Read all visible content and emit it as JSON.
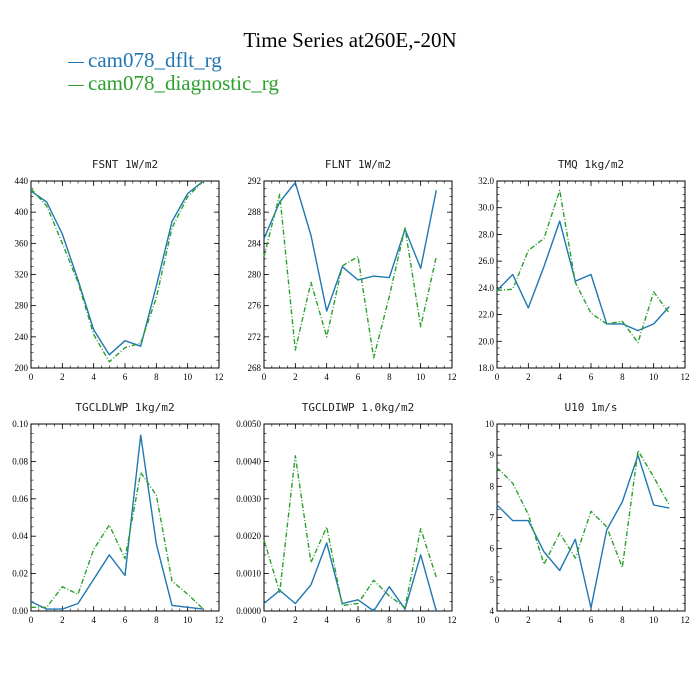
{
  "title": "Time Series at260E,-20N",
  "legend": [
    {
      "name": "cam078_dflt_rg",
      "color": "#1f77b4"
    },
    {
      "name": "cam078_diagnostic_rg",
      "color": "#2ca02c"
    }
  ],
  "chart_data": [
    {
      "type": "line",
      "title": "FSNT  1W/m2",
      "x": [
        0,
        1,
        2,
        3,
        4,
        5,
        6,
        7,
        8,
        9,
        10,
        11
      ],
      "xlim": [
        0,
        12
      ],
      "xticks": [
        "0",
        "2",
        "4",
        "6",
        "8",
        "10",
        "12"
      ],
      "ylim": [
        200,
        440
      ],
      "yticks": [
        "200",
        "240",
        "280",
        "320",
        "360",
        "400",
        "440"
      ],
      "series": [
        {
          "name": "cam078_dflt_rg",
          "values": [
            427,
            413,
            372,
            313,
            249,
            217,
            235,
            228,
            305,
            388,
            424,
            440
          ]
        },
        {
          "name": "cam078_diagnostic_rg",
          "values": [
            430,
            408,
            360,
            310,
            243,
            208,
            226,
            232,
            290,
            380,
            420,
            440
          ]
        }
      ]
    },
    {
      "type": "line",
      "title": "FLNT  1W/m2",
      "x": [
        0,
        1,
        2,
        3,
        4,
        5,
        6,
        7,
        8,
        9,
        10,
        11
      ],
      "xlim": [
        0,
        12
      ],
      "xticks": [
        "0",
        "2",
        "4",
        "6",
        "8",
        "10",
        "12"
      ],
      "ylim": [
        268,
        292
      ],
      "yticks": [
        "268",
        "272",
        "276",
        "280",
        "284",
        "288",
        "292"
      ],
      "series": [
        {
          "name": "cam078_dflt_rg",
          "values": [
            284.6,
            289.3,
            291.8,
            285,
            275.3,
            281,
            279.3,
            279.8,
            279.6,
            285.8,
            280.8,
            290.8
          ]
        },
        {
          "name": "cam078_diagnostic_rg",
          "values": [
            282.3,
            290.3,
            270.3,
            279,
            272,
            281.1,
            282.3,
            269.3,
            277.2,
            286,
            273.3,
            282.3
          ]
        }
      ]
    },
    {
      "type": "line",
      "title": "TMQ  1kg/m2",
      "x": [
        0,
        1,
        2,
        3,
        4,
        5,
        6,
        7,
        8,
        9,
        10,
        11
      ],
      "xlim": [
        0,
        12
      ],
      "xticks": [
        "0",
        "2",
        "4",
        "6",
        "8",
        "10",
        "12"
      ],
      "ylim": [
        18,
        32
      ],
      "yticks": [
        "18.0",
        "20.0",
        "22.0",
        "24.0",
        "26.0",
        "28.0",
        "30.0",
        "32.0"
      ],
      "series": [
        {
          "name": "cam078_dflt_rg",
          "values": [
            23.8,
            25,
            22.5,
            25.6,
            29,
            24.5,
            25,
            21.3,
            21.3,
            20.8,
            21.3,
            22.6
          ]
        },
        {
          "name": "cam078_diagnostic_rg",
          "values": [
            23.8,
            23.9,
            26.8,
            27.7,
            31.3,
            24.4,
            22.1,
            21.3,
            21.5,
            19.9,
            23.7,
            22.1
          ]
        }
      ]
    },
    {
      "type": "line",
      "title": "TGCLDLWP  1kg/m2",
      "x": [
        0,
        1,
        2,
        3,
        4,
        5,
        6,
        7,
        8,
        9,
        10,
        11
      ],
      "xlim": [
        0,
        12
      ],
      "xticks": [
        "0",
        "2",
        "4",
        "6",
        "8",
        "10",
        "12"
      ],
      "ylim": [
        0,
        0.1
      ],
      "yticks": [
        "0.00",
        "0.02",
        "0.04",
        "0.06",
        "0.08",
        "0.10"
      ],
      "series": [
        {
          "name": "cam078_dflt_rg",
          "values": [
            0.005,
            0.001,
            0.001,
            0.004,
            0.017,
            0.03,
            0.019,
            0.094,
            0.036,
            0.003,
            0.002,
            0.001
          ]
        },
        {
          "name": "cam078_diagnostic_rg",
          "values": [
            0.002,
            0.002,
            0.013,
            0.009,
            0.033,
            0.046,
            0.028,
            0.074,
            0.062,
            0.016,
            0.009,
            0.001
          ]
        }
      ]
    },
    {
      "type": "line",
      "title": "TGCLDIWP  1.0kg/m2",
      "x": [
        0,
        1,
        2,
        3,
        4,
        5,
        6,
        7,
        8,
        9,
        10,
        11
      ],
      "xlim": [
        0,
        12
      ],
      "xticks": [
        "0",
        "2",
        "4",
        "6",
        "8",
        "10",
        "12"
      ],
      "ylim": [
        0,
        0.005
      ],
      "yticks": [
        "0.0000",
        "0.0010",
        "0.0020",
        "0.0030",
        "0.0040",
        "0.0050"
      ],
      "series": [
        {
          "name": "cam078_dflt_rg",
          "values": [
            0.0002,
            0.00055,
            0.0002,
            0.0007,
            0.00182,
            0.0002,
            0.0003,
            0.0,
            0.00065,
            5e-05,
            0.0015,
            0.0
          ]
        },
        {
          "name": "cam078_diagnostic_rg",
          "values": [
            0.0019,
            0.0005,
            0.00415,
            0.0013,
            0.00225,
            0.00015,
            0.0002,
            0.00082,
            0.0004,
            0.0001,
            0.0022,
            0.0009
          ]
        }
      ]
    },
    {
      "type": "line",
      "title": "U10  1m/s",
      "x": [
        0,
        1,
        2,
        3,
        4,
        5,
        6,
        7,
        8,
        9,
        10,
        11
      ],
      "xlim": [
        0,
        12
      ],
      "xticks": [
        "0",
        "2",
        "4",
        "6",
        "8",
        "10",
        "12"
      ],
      "ylim": [
        4,
        10
      ],
      "yticks": [
        "4",
        "5",
        "6",
        "7",
        "8",
        "9",
        "10"
      ],
      "series": [
        {
          "name": "cam078_dflt_rg",
          "values": [
            7.4,
            6.9,
            6.9,
            5.9,
            5.3,
            6.3,
            4.1,
            6.6,
            7.5,
            9.0,
            7.4,
            7.3
          ]
        },
        {
          "name": "cam078_diagnostic_rg",
          "values": [
            8.6,
            8.1,
            7.1,
            5.5,
            6.5,
            5.7,
            7.2,
            6.7,
            5.4,
            9.15,
            8.3,
            7.4
          ]
        }
      ]
    }
  ]
}
